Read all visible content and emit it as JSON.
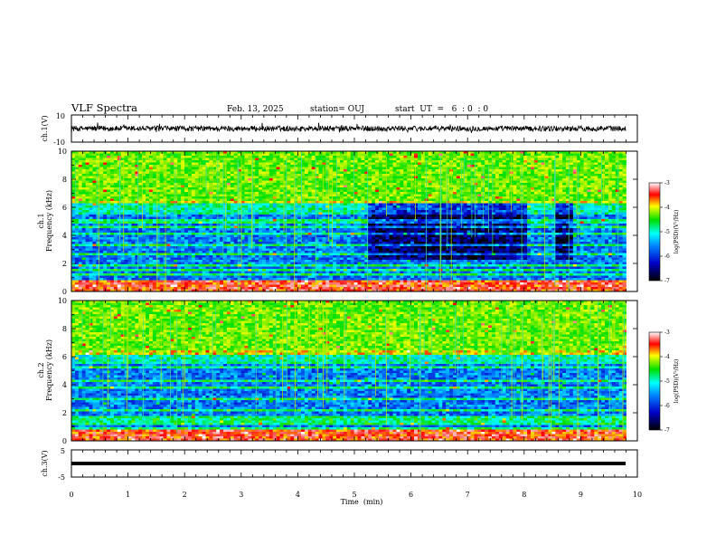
{
  "header": {
    "title": "VLF Spectra",
    "date": "Feb. 13, 2025",
    "station": "station= OUJ",
    "start": "start  UT  =   6  : 0  : 0"
  },
  "chart_data": [
    {
      "type": "line",
      "ylabel": "ch.1(V)",
      "ylim": [
        -10,
        10
      ],
      "y_ticklabels": [
        "10",
        "-10"
      ],
      "xlim": [
        0,
        10
      ],
      "description_values": {
        "baseline_V": 0,
        "approx_amplitude_V": 2
      }
    },
    {
      "type": "heatmap",
      "ylabel_line1": "ch.1",
      "ylabel_line2": "Frequency (kHz)",
      "ylim": [
        0,
        10
      ],
      "y_ticks": [
        0,
        2,
        4,
        6,
        8,
        10
      ],
      "xlim": [
        0,
        10
      ],
      "colorbar": {
        "label": "log(PSD)(V²/Hz)",
        "range": [
          -7,
          -3
        ],
        "ticks": [
          -3,
          -4,
          -5,
          -6,
          -7
        ]
      },
      "data_end_min": 9.8,
      "quiet_intervals_min": [
        [
          5.2,
          8.0
        ],
        [
          8.5,
          8.85
        ]
      ]
    },
    {
      "type": "heatmap",
      "ylabel_line1": "ch.2",
      "ylabel_line2": "Frequency (kHz)",
      "ylim": [
        0,
        10
      ],
      "y_ticks": [
        0,
        2,
        4,
        6,
        8,
        10
      ],
      "xlim": [
        0,
        10
      ],
      "colorbar": {
        "label": "log(PSD)(V²/Hz)",
        "range": [
          -7,
          -3
        ],
        "ticks": [
          -3,
          -4,
          -5,
          -6,
          -7
        ]
      },
      "data_end_min": 9.8
    },
    {
      "type": "line",
      "ylabel": "ch.3(V)",
      "ylim": [
        -5,
        5
      ],
      "y_ticklabels": [
        "5",
        "-5"
      ],
      "xlim": [
        0,
        10
      ],
      "x_ticks": [
        0,
        1,
        2,
        3,
        4,
        5,
        6,
        7,
        8,
        9,
        10
      ],
      "xlabel": "Time  (min)",
      "description_values": {
        "level_V": -1.5
      }
    }
  ]
}
